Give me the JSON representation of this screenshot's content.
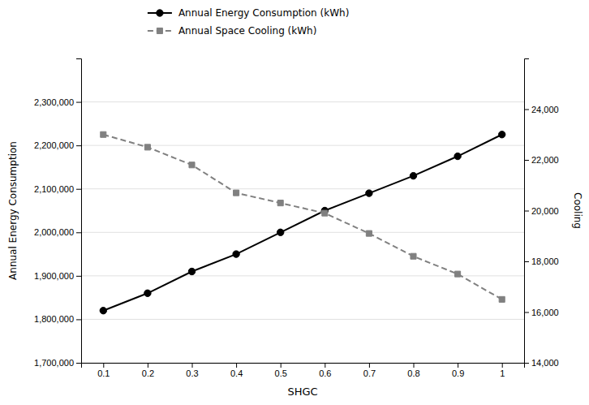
{
  "chart_data": {
    "type": "line",
    "xlabel": "SHGC",
    "ylabel": "Annual Energy Consumption",
    "y2label": "Cooling",
    "x": [
      0.1,
      0.2,
      0.3,
      0.4,
      0.5,
      0.6,
      0.7,
      0.8,
      0.9,
      1
    ],
    "series": [
      {
        "name": "Annual Energy Consumption (kWh)",
        "color": "#000000",
        "marker": "circle",
        "line_style": "solid",
        "values": [
          1820000,
          1860000,
          1910000,
          1950000,
          2000000,
          2050000,
          2090000,
          2130000,
          2175000,
          2225000
        ]
      },
      {
        "name": "Annual Space Cooling (kWh)",
        "color": "#808080",
        "marker": "square",
        "line_style": "dashed",
        "axis": "y2",
        "values": [
          23000,
          22500,
          21800,
          20700,
          20300,
          19900,
          19100,
          18200,
          17500,
          16500
        ]
      }
    ],
    "xlim": [
      0.05,
      1.05
    ],
    "xticks": [
      0.1,
      0.2,
      0.3,
      0.4,
      0.5,
      0.6,
      0.7,
      0.8,
      0.9,
      1
    ],
    "ylim": [
      1700000,
      2400000
    ],
    "yticks": [
      {
        "value": 1700000,
        "label": "1,700,000"
      },
      {
        "value": 1800000,
        "label": "1,800,000"
      },
      {
        "value": 1900000,
        "label": "1,900,000"
      },
      {
        "value": 2000000,
        "label": "2,000,000"
      },
      {
        "value": 2100000,
        "label": "2,100,000"
      },
      {
        "value": 2200000,
        "label": "2,200,000"
      },
      {
        "value": 2300000,
        "label": "2,300,000"
      }
    ],
    "y2lim": [
      14000,
      26000
    ],
    "y2ticks": [
      {
        "value": 14000,
        "label": "14,000"
      },
      {
        "value": 16000,
        "label": "16,000"
      },
      {
        "value": 18000,
        "label": "18,000"
      },
      {
        "value": 20000,
        "label": "20,000"
      },
      {
        "value": 22000,
        "label": "22,000"
      },
      {
        "value": 24000,
        "label": "24,000"
      }
    ],
    "grid": true,
    "legend": "top"
  }
}
